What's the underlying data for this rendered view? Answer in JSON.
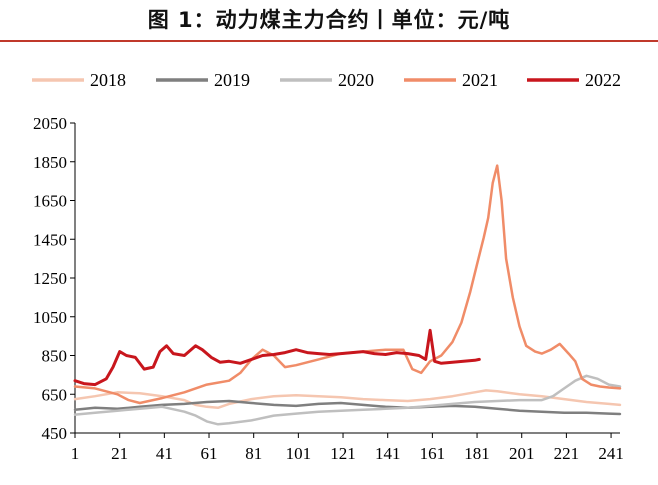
{
  "title": "图 1：动力煤主力合约丨单位：元/吨",
  "colors": {
    "2018": "#f5c6b0",
    "2019": "#7f7f7f",
    "2020": "#bfbfbf",
    "2021": "#f08c68",
    "2022": "#c8161d",
    "title_rule": "#c0392b"
  },
  "chart_data": {
    "type": "line",
    "title": "",
    "xlabel": "",
    "ylabel": "",
    "xlim": [
      1,
      245
    ],
    "ylim": [
      450,
      2050
    ],
    "x_ticks": [
      1,
      21,
      41,
      61,
      81,
      101,
      121,
      141,
      161,
      181,
      201,
      221,
      241
    ],
    "y_ticks": [
      450,
      650,
      850,
      1050,
      1250,
      1450,
      1650,
      1850,
      2050
    ],
    "legend_position": "top",
    "grid": false,
    "series": [
      {
        "name": "2018",
        "points": [
          [
            1,
            625
          ],
          [
            10,
            640
          ],
          [
            20,
            660
          ],
          [
            30,
            655
          ],
          [
            40,
            640
          ],
          [
            50,
            620
          ],
          [
            55,
            595
          ],
          [
            60,
            585
          ],
          [
            65,
            580
          ],
          [
            70,
            600
          ],
          [
            80,
            625
          ],
          [
            90,
            640
          ],
          [
            100,
            645
          ],
          [
            110,
            640
          ],
          [
            120,
            635
          ],
          [
            130,
            625
          ],
          [
            140,
            620
          ],
          [
            150,
            615
          ],
          [
            160,
            625
          ],
          [
            170,
            640
          ],
          [
            180,
            660
          ],
          [
            185,
            670
          ],
          [
            190,
            665
          ],
          [
            200,
            650
          ],
          [
            210,
            640
          ],
          [
            220,
            625
          ],
          [
            230,
            610
          ],
          [
            240,
            600
          ],
          [
            245,
            595
          ]
        ]
      },
      {
        "name": "2019",
        "points": [
          [
            1,
            570
          ],
          [
            10,
            580
          ],
          [
            20,
            575
          ],
          [
            30,
            585
          ],
          [
            40,
            595
          ],
          [
            50,
            600
          ],
          [
            60,
            610
          ],
          [
            70,
            615
          ],
          [
            80,
            605
          ],
          [
            90,
            595
          ],
          [
            100,
            590
          ],
          [
            110,
            600
          ],
          [
            120,
            605
          ],
          [
            130,
            595
          ],
          [
            140,
            585
          ],
          [
            150,
            580
          ],
          [
            160,
            585
          ],
          [
            170,
            590
          ],
          [
            180,
            585
          ],
          [
            190,
            575
          ],
          [
            200,
            565
          ],
          [
            210,
            560
          ],
          [
            220,
            555
          ],
          [
            230,
            555
          ],
          [
            240,
            550
          ],
          [
            245,
            548
          ]
        ]
      },
      {
        "name": "2020",
        "points": [
          [
            1,
            545
          ],
          [
            10,
            555
          ],
          [
            20,
            565
          ],
          [
            30,
            575
          ],
          [
            40,
            585
          ],
          [
            50,
            560
          ],
          [
            55,
            540
          ],
          [
            60,
            510
          ],
          [
            65,
            495
          ],
          [
            70,
            500
          ],
          [
            80,
            515
          ],
          [
            90,
            540
          ],
          [
            100,
            550
          ],
          [
            110,
            560
          ],
          [
            120,
            565
          ],
          [
            130,
            570
          ],
          [
            140,
            575
          ],
          [
            150,
            580
          ],
          [
            160,
            590
          ],
          [
            170,
            600
          ],
          [
            180,
            610
          ],
          [
            190,
            615
          ],
          [
            200,
            620
          ],
          [
            210,
            620
          ],
          [
            215,
            640
          ],
          [
            220,
            680
          ],
          [
            225,
            720
          ],
          [
            230,
            745
          ],
          [
            235,
            730
          ],
          [
            240,
            700
          ],
          [
            245,
            690
          ]
        ]
      },
      {
        "name": "2021",
        "points": [
          [
            1,
            690
          ],
          [
            10,
            680
          ],
          [
            20,
            650
          ],
          [
            25,
            620
          ],
          [
            30,
            605
          ],
          [
            40,
            630
          ],
          [
            50,
            660
          ],
          [
            60,
            700
          ],
          [
            70,
            720
          ],
          [
            75,
            760
          ],
          [
            80,
            830
          ],
          [
            85,
            880
          ],
          [
            90,
            850
          ],
          [
            95,
            790
          ],
          [
            100,
            800
          ],
          [
            110,
            830
          ],
          [
            120,
            860
          ],
          [
            130,
            870
          ],
          [
            140,
            880
          ],
          [
            148,
            880
          ],
          [
            152,
            780
          ],
          [
            156,
            760
          ],
          [
            160,
            820
          ],
          [
            165,
            850
          ],
          [
            170,
            920
          ],
          [
            174,
            1020
          ],
          [
            178,
            1180
          ],
          [
            181,
            1320
          ],
          [
            184,
            1460
          ],
          [
            186,
            1560
          ],
          [
            188,
            1740
          ],
          [
            190,
            1830
          ],
          [
            192,
            1650
          ],
          [
            194,
            1350
          ],
          [
            197,
            1150
          ],
          [
            200,
            1000
          ],
          [
            203,
            900
          ],
          [
            207,
            870
          ],
          [
            210,
            860
          ],
          [
            214,
            880
          ],
          [
            218,
            910
          ],
          [
            222,
            860
          ],
          [
            225,
            820
          ],
          [
            228,
            730
          ],
          [
            232,
            700
          ],
          [
            236,
            690
          ],
          [
            240,
            685
          ],
          [
            245,
            680
          ]
        ]
      },
      {
        "name": "2022",
        "points": [
          [
            1,
            720
          ],
          [
            5,
            705
          ],
          [
            10,
            700
          ],
          [
            15,
            730
          ],
          [
            18,
            790
          ],
          [
            21,
            870
          ],
          [
            24,
            850
          ],
          [
            28,
            840
          ],
          [
            32,
            780
          ],
          [
            36,
            790
          ],
          [
            39,
            870
          ],
          [
            42,
            900
          ],
          [
            45,
            860
          ],
          [
            50,
            850
          ],
          [
            55,
            900
          ],
          [
            58,
            880
          ],
          [
            62,
            840
          ],
          [
            66,
            815
          ],
          [
            70,
            820
          ],
          [
            75,
            810
          ],
          [
            80,
            830
          ],
          [
            85,
            850
          ],
          [
            90,
            855
          ],
          [
            95,
            865
          ],
          [
            100,
            880
          ],
          [
            105,
            865
          ],
          [
            110,
            860
          ],
          [
            115,
            855
          ],
          [
            120,
            860
          ],
          [
            125,
            865
          ],
          [
            130,
            870
          ],
          [
            135,
            860
          ],
          [
            140,
            855
          ],
          [
            145,
            865
          ],
          [
            150,
            860
          ],
          [
            155,
            850
          ],
          [
            158,
            830
          ],
          [
            160,
            980
          ],
          [
            162,
            820
          ],
          [
            165,
            810
          ],
          [
            170,
            815
          ],
          [
            175,
            820
          ],
          [
            180,
            825
          ],
          [
            182,
            830
          ]
        ]
      }
    ]
  }
}
